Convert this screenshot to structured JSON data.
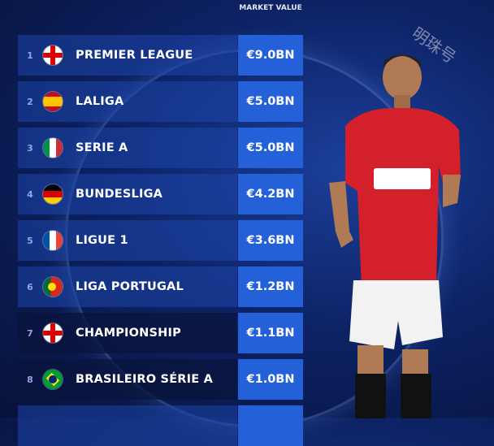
{
  "header": {
    "market_value": "MARKET VALUE"
  },
  "watermark": "明珠号",
  "rows": [
    {
      "rank": "1",
      "league": "PREMIER LEAGUE",
      "value": "€9.0BN",
      "flag": "england"
    },
    {
      "rank": "2",
      "league": "LALIGA",
      "value": "€5.0BN",
      "flag": "spain"
    },
    {
      "rank": "3",
      "league": "SERIE A",
      "value": "€5.0BN",
      "flag": "italy"
    },
    {
      "rank": "4",
      "league": "BUNDESLIGA",
      "value": "€4.2BN",
      "flag": "germany"
    },
    {
      "rank": "5",
      "league": "LIGUE 1",
      "value": "€3.6BN",
      "flag": "france"
    },
    {
      "rank": "6",
      "league": "LIGA PORTUGAL",
      "value": "€1.2BN",
      "flag": "portugal"
    },
    {
      "rank": "7",
      "league": "CHAMPIONSHIP",
      "value": "€1.1BN",
      "flag": "england"
    },
    {
      "rank": "8",
      "league": "BRASILEIRO SÉRIE A",
      "value": "€1.0BN",
      "flag": "brazil"
    }
  ],
  "colors": {
    "value_box": "#2460d8",
    "background": "#0d2366",
    "shirt": "#d4202a"
  }
}
